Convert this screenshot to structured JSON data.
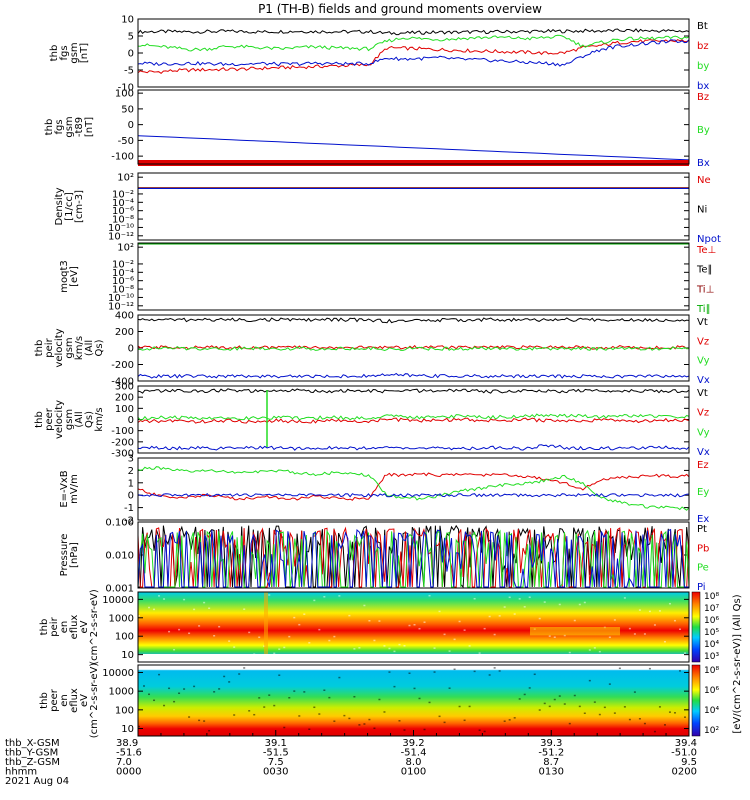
{
  "title": "P1 (TH-B) fields and ground moments overview",
  "date_label": "2021 Aug 04",
  "colors": {
    "black": "#000000",
    "red": "#e00000",
    "green": "#22dd22",
    "blue": "#0010cc",
    "darkred": "#8b0000",
    "darkgreen": "#00aa00"
  },
  "ephemeris": {
    "row_labels": [
      "thb_X-GSM",
      "thb_Y-GSM",
      "thb_Z-GSM",
      "hhmm"
    ],
    "columns": [
      [
        "38.9",
        "-51.6",
        "7.0",
        "0000"
      ],
      [
        "39.1",
        "-51.5",
        "7.5",
        "0030"
      ],
      [
        "39.2",
        "-51.4",
        "8.0",
        "0100"
      ],
      [
        "39.3",
        "-51.2",
        "8.7",
        "0130"
      ],
      [
        "39.4",
        "-51.0",
        "9.5",
        "0200"
      ]
    ]
  },
  "colorbar": {
    "label": "[eV/(cm^2-s-sr-eV)] (All Qs)",
    "ticks_top": [
      "10^8",
      "10^7",
      "10^6",
      "10^5",
      "10^4",
      "10^3"
    ],
    "ticks_bottom": [
      "10^8",
      "10^6",
      "10^4",
      "10^2"
    ]
  },
  "chart_data": [
    {
      "type": "line",
      "ylabel": "thb fgs gsm [nT]",
      "ylim": [
        -10,
        10
      ],
      "yticks": [
        "10",
        "5",
        "0",
        "-5",
        "-10"
      ],
      "series": [
        {
          "name": "Bt",
          "color": "black",
          "values": [
            6.2,
            6.3,
            6.3,
            6.2,
            6.3,
            6.4,
            6.3,
            6.2,
            6.3,
            6.4,
            6.3,
            6.3,
            6.2,
            6.3,
            5.8,
            5.9,
            6.0,
            6.1,
            6.1,
            6.2,
            6.2,
            6.3,
            6.3,
            6.4,
            6.4,
            6.5,
            6.5,
            6.6,
            6.6,
            6.5,
            6.5,
            6.4
          ]
        },
        {
          "name": "bz",
          "color": "red",
          "values": [
            -5.5,
            -5.6,
            -5.2,
            -5.0,
            -4.9,
            -4.8,
            -4.7,
            -4.5,
            -4.3,
            -4.2,
            -4.0,
            -3.8,
            -3.6,
            -3.5,
            1.5,
            1.4,
            1.2,
            1.0,
            0.8,
            0.6,
            0.5,
            0.3,
            0.2,
            -0.1,
            0.1,
            1.5,
            2.2,
            3.0,
            3.4,
            3.5,
            3.6,
            3.6
          ]
        },
        {
          "name": "by",
          "color": "green",
          "values": [
            2.5,
            2.0,
            1.5,
            1.0,
            1.2,
            2.0,
            1.8,
            1.5,
            1.2,
            1.6,
            1.8,
            1.5,
            1.4,
            1.2,
            3.5,
            4.5,
            4.2,
            4.0,
            4.2,
            4.5,
            4.6,
            4.5,
            4.2,
            4.6,
            4.8,
            2.0,
            3.0,
            4.0,
            4.2,
            4.3,
            4.5,
            4.6
          ]
        },
        {
          "name": "bx",
          "color": "blue",
          "values": [
            -3.0,
            -3.2,
            -3.1,
            -3.0,
            -3.2,
            -3.3,
            -3.2,
            -3.1,
            -3.3,
            -3.2,
            -3.0,
            -3.1,
            -3.2,
            -3.1,
            -1.5,
            -1.8,
            -1.6,
            -1.4,
            -1.8,
            -2.0,
            -2.2,
            -2.5,
            -2.8,
            -3.0,
            -3.5,
            -1.0,
            1.0,
            2.0,
            2.5,
            3.0,
            3.4,
            3.5
          ]
        }
      ]
    },
    {
      "type": "line",
      "ylabel": "thb fgs gsm -t89 [nT]",
      "ylim": [
        -125,
        110
      ],
      "yticks": [
        "100",
        "50",
        "0",
        "-50",
        "-100"
      ],
      "series": [
        {
          "name": "Bz",
          "color": "red",
          "values": [
            -130,
            -130
          ]
        },
        {
          "name": "By",
          "color": "green",
          "values": [
            -130,
            -130
          ]
        },
        {
          "name": "Bx",
          "color": "blue",
          "values": [
            -35,
            -112
          ]
        }
      ]
    },
    {
      "type": "line",
      "ylabel": "Density [1/cc] [cm-3]",
      "yscale": "log",
      "yticks": [
        "10^2",
        "10^-2",
        "10^-4",
        "10^-6",
        "10^-8",
        "10^-10",
        "10^-12"
      ],
      "series": [
        {
          "name": "Ne",
          "color": "red",
          "values": [
            0.3,
            0.3
          ]
        },
        {
          "name": "Ni",
          "color": "black",
          "values": [
            0.25,
            0.25
          ]
        },
        {
          "name": "Npot",
          "color": "blue",
          "values": [
            0.2,
            0.2
          ]
        }
      ]
    },
    {
      "type": "line",
      "ylabel": "moqt3 [eV]",
      "yscale": "log",
      "yticks": [
        "10^2",
        "10^-2",
        "10^-4",
        "10^-6",
        "10^-8",
        "10^-10",
        "10^-12"
      ],
      "series": [
        {
          "name": "Te⊥",
          "color": "red",
          "values": [
            3000,
            3000
          ]
        },
        {
          "name": "Te∥",
          "color": "black",
          "values": [
            2000,
            2000
          ]
        },
        {
          "name": "Ti⊥",
          "color": "darkred",
          "values": [
            8000,
            8000
          ]
        },
        {
          "name": "Ti∥",
          "color": "darkgreen",
          "values": [
            6000,
            6000
          ]
        }
      ]
    },
    {
      "type": "line",
      "ylabel": "thb peir velocity gsm km/s (All Qs)",
      "ylim": [
        -400,
        400
      ],
      "yticks": [
        "400",
        "200",
        "0",
        "-200",
        "-400"
      ],
      "series": [
        {
          "name": "Vt",
          "color": "black",
          "values": [
            340,
            345,
            342,
            340,
            345,
            343,
            340,
            342,
            345,
            340,
            342,
            344,
            341,
            340,
            325,
            330,
            335,
            338,
            340,
            342,
            345,
            340,
            338,
            342,
            345,
            340,
            342,
            345,
            343,
            340,
            342,
            344
          ]
        },
        {
          "name": "Vz",
          "color": "red",
          "values": [
            5,
            8,
            10,
            5,
            8,
            12,
            6,
            5,
            8,
            10,
            5,
            8,
            6,
            5,
            10,
            8,
            12,
            15,
            10,
            8,
            5,
            10,
            8,
            12,
            10,
            8,
            5,
            10,
            8,
            5,
            8,
            10
          ]
        },
        {
          "name": "Vy",
          "color": "green",
          "values": [
            -10,
            -5,
            0,
            -8,
            -5,
            -10,
            -5,
            0,
            -8,
            -5,
            -10,
            -5,
            -8,
            -5,
            -15,
            -10,
            -5,
            -12,
            -8,
            -5,
            -10,
            -5,
            -8,
            -10,
            -5,
            -8,
            -10,
            -5,
            -8,
            -10,
            -5,
            -8
          ]
        },
        {
          "name": "Vx",
          "color": "blue",
          "values": [
            -340,
            -345,
            -342,
            -340,
            -345,
            -343,
            -340,
            -342,
            -345,
            -340,
            -342,
            -344,
            -341,
            -340,
            -325,
            -330,
            -335,
            -338,
            -340,
            -342,
            -345,
            -340,
            -338,
            -342,
            -345,
            -340,
            -342,
            -345,
            -343,
            -340,
            -342,
            -344
          ]
        }
      ]
    },
    {
      "type": "line",
      "ylabel": "thb peer velocity gsm (All Qs) km/s",
      "ylim": [
        -300,
        300
      ],
      "yticks": [
        "300",
        "200",
        "100",
        "0",
        "-100",
        "-200",
        "-300"
      ],
      "series": [
        {
          "name": "Vt",
          "color": "black",
          "values": [
            250,
            255,
            260,
            250,
            258,
            262,
            255,
            250,
            258,
            260,
            255,
            252,
            258,
            255,
            250,
            260,
            255,
            258,
            262,
            255,
            250,
            258,
            260,
            255,
            252,
            258,
            255,
            260,
            258,
            255,
            252,
            258
          ]
        },
        {
          "name": "Vz",
          "color": "red",
          "values": [
            -20,
            -15,
            -10,
            -20,
            -15,
            -10,
            -20,
            -15,
            -10,
            -20,
            -15,
            -10,
            -20,
            -15,
            0,
            -5,
            -10,
            -5,
            0,
            -5,
            -10,
            -5,
            0,
            -10,
            -15,
            -10,
            -5,
            -10,
            -15,
            -10,
            -5,
            -10
          ]
        },
        {
          "name": "Vy",
          "color": "green",
          "values": [
            10,
            15,
            20,
            10,
            15,
            20,
            10,
            15,
            20,
            10,
            15,
            20,
            10,
            15,
            30,
            25,
            20,
            25,
            30,
            25,
            20,
            25,
            30,
            40,
            35,
            30,
            25,
            30,
            35,
            30,
            25,
            30
          ]
        },
        {
          "name": "Vx",
          "color": "blue",
          "values": [
            -250,
            -255,
            -260,
            -250,
            -258,
            -262,
            -255,
            -250,
            -258,
            -260,
            -255,
            -252,
            -258,
            -255,
            -250,
            -260,
            -255,
            -258,
            -262,
            -255,
            -250,
            -258,
            -260,
            -230,
            -252,
            -258,
            -255,
            -260,
            -258,
            -255,
            -252,
            -258
          ]
        }
      ]
    },
    {
      "type": "line",
      "ylabel": "E=-VxB mV/m",
      "ylim": [
        -2,
        3
      ],
      "yticks": [
        "3",
        "2",
        "1",
        "0",
        "-1",
        "-2"
      ],
      "series": [
        {
          "name": "Ez",
          "color": "red",
          "values": [
            0.5,
            0.0,
            -0.2,
            -0.1,
            0.0,
            -0.2,
            -0.3,
            -0.1,
            -0.2,
            -0.3,
            -0.1,
            -0.2,
            -0.3,
            -0.2,
            1.7,
            1.6,
            1.7,
            1.6,
            1.7,
            1.6,
            1.7,
            1.6,
            1.5,
            1.3,
            1.0,
            0.5,
            1.2,
            1.4,
            1.5,
            1.6,
            1.5,
            1.6
          ]
        },
        {
          "name": "Ey",
          "color": "green",
          "values": [
            2.1,
            2.2,
            2.0,
            1.9,
            2.0,
            1.9,
            1.8,
            1.9,
            2.0,
            1.8,
            1.7,
            1.8,
            1.7,
            1.6,
            0.0,
            -0.2,
            -0.3,
            0.0,
            0.3,
            0.5,
            0.7,
            0.9,
            1.0,
            1.2,
            1.5,
            1.0,
            -0.2,
            -0.5,
            -0.8,
            -1.0,
            -1.0,
            -1.1
          ]
        },
        {
          "name": "Ex",
          "color": "blue",
          "values": [
            0.0,
            0.0,
            0.0,
            0.0,
            0.0,
            0.0,
            0.0,
            0.0,
            0.0,
            0.0,
            0.0,
            0.0,
            0.0,
            0.0,
            0.0,
            0.0,
            0.0,
            0.0,
            0.0,
            0.0,
            0.0,
            0.0,
            0.0,
            0.0,
            0.0,
            0.0,
            0.0,
            0.0,
            0.0,
            0.0,
            0.0,
            0.0
          ]
        }
      ]
    },
    {
      "type": "line",
      "ylabel": "Pressure [nPa]",
      "yscale": "log",
      "ylim": [
        0.001,
        0.1
      ],
      "yticks": [
        "0.100",
        "0.010",
        "0.001"
      ],
      "series": [
        {
          "name": "Pt",
          "color": "black",
          "values": [
            0.028,
            0.028,
            0.029,
            0.029,
            0.028,
            0.029,
            0.028,
            0.028,
            0.029,
            0.028,
            0.028,
            0.029,
            0.028,
            0.028,
            0.027,
            0.027,
            0.028,
            0.028,
            0.028,
            0.028,
            0.028,
            0.028,
            0.028,
            0.027,
            0.027,
            0.028,
            0.028,
            0.028,
            0.028,
            0.029,
            0.028,
            0.028
          ]
        },
        {
          "name": "Pb",
          "color": "red",
          "values": [
            0.018,
            0.019,
            0.019,
            0.018,
            0.018,
            0.018,
            0.017,
            0.017,
            0.017,
            0.016,
            0.016,
            0.016,
            0.015,
            0.015,
            0.013,
            0.013,
            0.013,
            0.013,
            0.014,
            0.014,
            0.014,
            0.015,
            0.015,
            0.014,
            0.013,
            0.016,
            0.017,
            0.018,
            0.018,
            0.019,
            0.019,
            0.019
          ]
        },
        {
          "name": "Pe",
          "color": "green",
          "values": [
            0.0045,
            0.0046,
            0.0047,
            0.0046,
            0.0045,
            0.0046,
            0.0045,
            0.0046,
            0.0047,
            0.0046,
            0.0045,
            0.0046,
            0.0045,
            0.0044,
            0.005,
            0.0052,
            0.0051,
            0.005,
            0.0049,
            0.0048,
            0.0048,
            0.0047,
            0.0047,
            0.0046,
            0.0045,
            0.0044,
            0.0043,
            0.0043,
            0.0042,
            0.0041,
            0.004,
            0.0038
          ]
        },
        {
          "name": "Pi",
          "color": "blue",
          "values": [
            0.008,
            0.0085,
            0.0082,
            0.008,
            0.0078,
            0.008,
            0.0082,
            0.008,
            0.0078,
            0.008,
            0.0082,
            0.008,
            0.0078,
            0.0076,
            0.009,
            0.0095,
            0.0092,
            0.009,
            0.0088,
            0.009,
            0.0085,
            0.008,
            0.0075,
            0.007,
            0.0065,
            0.0075,
            0.008,
            0.0082,
            0.0085,
            0.0088,
            0.009,
            0.0092
          ]
        }
      ]
    },
    {
      "type": "heatmap",
      "ylabel": "thb peir en eflux eV (cm^2-s-sr-eV)",
      "yscale": "log",
      "yticks": [
        "10000",
        "1000",
        "100",
        "10"
      ],
      "colorbar_range": [
        "10^3",
        "10^8"
      ]
    },
    {
      "type": "heatmap",
      "ylabel": "thb peer en eflux eV (cm^2-s-sr-eV)",
      "yscale": "log",
      "yticks": [
        "10000",
        "1000",
        "100",
        "10"
      ],
      "colorbar_range": [
        "10^2",
        "10^8"
      ]
    }
  ]
}
